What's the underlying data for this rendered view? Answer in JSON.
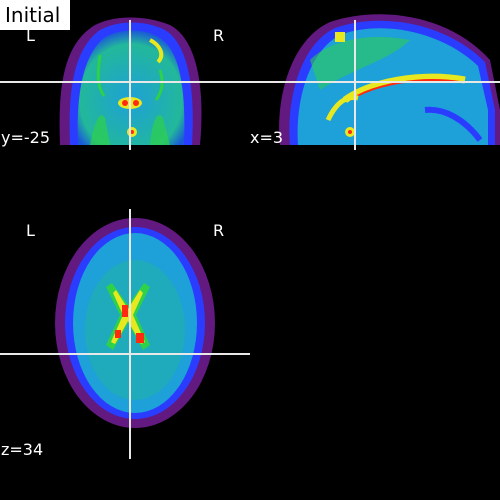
{
  "figure": {
    "title": "Initial"
  },
  "views": {
    "coronal": {
      "left_label": "L",
      "right_label": "R",
      "coord": "y=-25"
    },
    "sagittal": {
      "coord": "x=3"
    },
    "axial": {
      "left_label": "L",
      "right_label": "R",
      "coord": "z=34"
    }
  },
  "colormap": {
    "halo": "#7a1fa0",
    "edge": "#2a3cff",
    "tissue": "#1ea0d8",
    "tissue2": "#22b89a",
    "mid": "#2fd04a",
    "high": "#e8e820",
    "peak": "#ff2a10",
    "crosshair": "#e8e8e8"
  }
}
